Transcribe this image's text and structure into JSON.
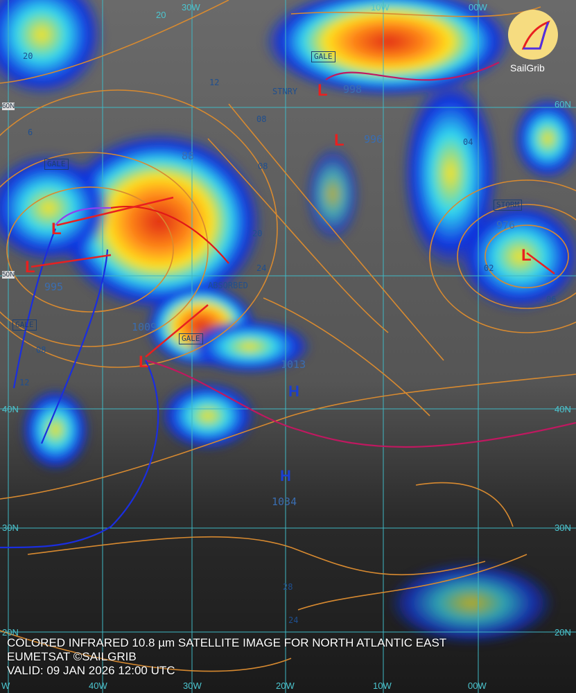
{
  "caption": {
    "line1": "COLORED INFRARED 10.8 µm SATELLITE IMAGE FOR NORTH ATLANTIC EAST",
    "line2": "EUMETSAT ©SAILGRIB",
    "line3": "VALID:  09 JAN 2026 12:00 UTC"
  },
  "logo": {
    "text": "SailGrib"
  },
  "grid": {
    "top": [
      "20",
      "30W",
      "10W",
      "00W"
    ],
    "bottom": [
      "W",
      "40W",
      "30W",
      "20W",
      "10W",
      "00W"
    ],
    "left": [
      "60N",
      "50N",
      "40N",
      "30N",
      "20N"
    ],
    "right": [
      "60N",
      "40N",
      "30N",
      "20N"
    ]
  },
  "warnings": [
    "GALE",
    "GALE",
    "GALE",
    "GALE",
    "STORM",
    "STNRY",
    "ABSORBED"
  ],
  "pressure_centers": [
    "88",
    "995",
    "1009",
    "1034",
    "976",
    "998",
    "996",
    "1013"
  ],
  "highs": [
    "H",
    "H"
  ],
  "isobar_labels": [
    "20",
    "6",
    "12",
    "08",
    "08",
    "20",
    "24",
    "28",
    "24",
    "04",
    "02",
    "06",
    "12",
    "08",
    "20"
  ],
  "colors": {
    "cloud_cold": "#e82a10",
    "cloud_mid": "#ffe21a",
    "cloud_cool": "#28d8f0",
    "cloud_warm_edge": "#1030e0",
    "isobar": "#d88a30",
    "grid": "#3fb8c4",
    "warm_front": "#e01818",
    "cold_front": "#1a2ee0",
    "occluded_front": "#9040f0"
  }
}
